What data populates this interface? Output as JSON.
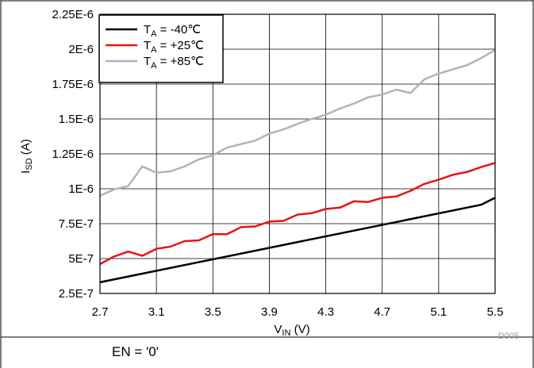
{
  "chart_data": {
    "type": "line",
    "x_ticks": [
      "2.7",
      "3.1",
      "3.5",
      "3.9",
      "4.3",
      "4.7",
      "5.1",
      "5.5"
    ],
    "y_ticks": [
      "2.5E-7",
      "5E-7",
      "7.5E-7",
      "1E-6",
      "1.25E-6",
      "1.5E-6",
      "1.75E-6",
      "2E-6",
      "2.25E-6"
    ],
    "xlim": [
      2.7,
      5.5
    ],
    "ylim": [
      2.5e-07,
      2.25e-06
    ],
    "grid": true,
    "legend_position": "top-left",
    "xlabel": {
      "main": "V",
      "sub": "IN",
      "unit": " (V)"
    },
    "ylabel": {
      "main": "I",
      "sub": "SD",
      "unit": " (A)"
    },
    "figure_id": "D005",
    "series": [
      {
        "name_main": "T",
        "name_sub": "A",
        "name_rest": " = -40℃",
        "color": "#000000",
        "x": [
          2.7,
          5.4,
          5.5
        ],
        "y": [
          3.3e-07,
          8.85e-07,
          9.35e-07
        ]
      },
      {
        "name_main": "T",
        "name_sub": "A",
        "name_rest": " = +25℃",
        "color": "#e8121a",
        "x": [
          2.7,
          2.8,
          2.9,
          3.0,
          3.1,
          3.2,
          3.3,
          3.4,
          3.5,
          3.6,
          3.7,
          3.8,
          3.9,
          4.0,
          4.1,
          4.2,
          4.3,
          4.4,
          4.5,
          4.6,
          4.7,
          4.8,
          4.9,
          5.0,
          5.1,
          5.2,
          5.3,
          5.4,
          5.5
        ],
        "y": [
          4.6e-07,
          5.15e-07,
          5.5e-07,
          5.2e-07,
          5.7e-07,
          5.85e-07,
          6.25e-07,
          6.3e-07,
          6.75e-07,
          6.75e-07,
          7.25e-07,
          7.3e-07,
          7.65e-07,
          7.7e-07,
          8.15e-07,
          8.25e-07,
          8.55e-07,
          8.65e-07,
          9.1e-07,
          9.05e-07,
          9.35e-07,
          9.45e-07,
          9.85e-07,
          1.035e-06,
          1.065e-06,
          1.1e-06,
          1.12e-06,
          1.155e-06,
          1.185e-06
        ]
      },
      {
        "name_main": "T",
        "name_sub": "A",
        "name_rest": " = +85℃",
        "color": "#b4b4b4",
        "x": [
          2.7,
          2.8,
          2.9,
          3.0,
          3.1,
          3.2,
          3.3,
          3.4,
          3.5,
          3.6,
          3.7,
          3.8,
          3.9,
          4.0,
          4.1,
          4.2,
          4.3,
          4.4,
          4.5,
          4.6,
          4.7,
          4.8,
          4.9,
          5.0,
          5.1,
          5.2,
          5.3,
          5.4,
          5.5
        ],
        "y": [
          9.5e-07,
          9.95e-07,
          1.02e-06,
          1.16e-06,
          1.115e-06,
          1.125e-06,
          1.16e-06,
          1.21e-06,
          1.24e-06,
          1.295e-06,
          1.32e-06,
          1.345e-06,
          1.395e-06,
          1.425e-06,
          1.465e-06,
          1.5e-06,
          1.53e-06,
          1.575e-06,
          1.61e-06,
          1.655e-06,
          1.675e-06,
          1.71e-06,
          1.685e-06,
          1.785e-06,
          1.825e-06,
          1.855e-06,
          1.885e-06,
          1.935e-06,
          1.995e-06
        ]
      }
    ]
  },
  "caption": "EN = '0'"
}
